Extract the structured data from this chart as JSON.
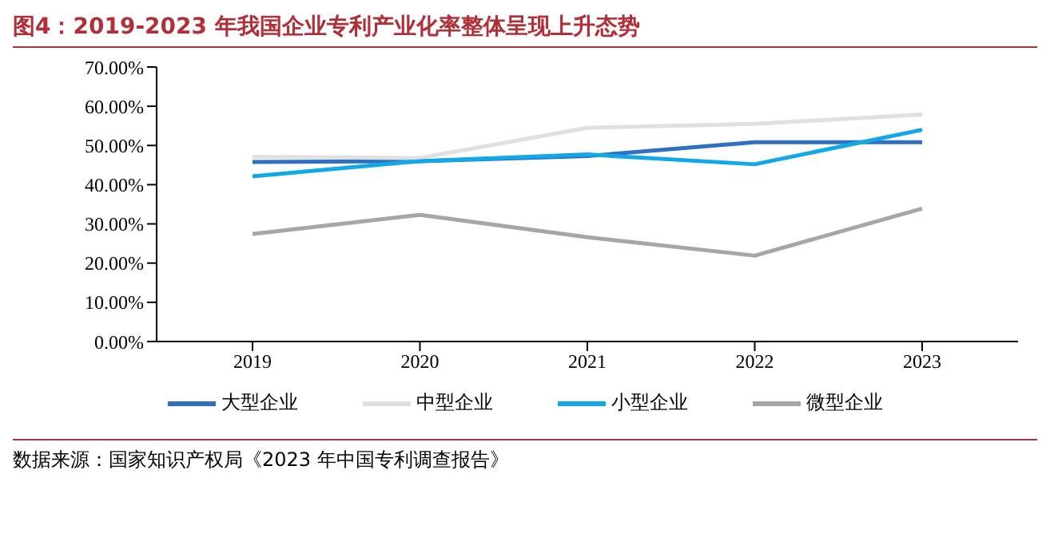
{
  "chart_data": {
    "type": "line",
    "title": "图4：2019-2023 年我国企业专利产业化率整体呈现上升态势",
    "categories": [
      "2019",
      "2020",
      "2021",
      "2022",
      "2023"
    ],
    "series": [
      {
        "name": "大型企业",
        "color": "#3070c0",
        "values": [
          45.8,
          46.0,
          47.3,
          50.8,
          50.8
        ]
      },
      {
        "name": "中型企业",
        "color": "#e0e0e0",
        "values": [
          47.1,
          46.8,
          54.5,
          55.5,
          57.9
        ]
      },
      {
        "name": "小型企业",
        "color": "#10a8e8",
        "values": [
          42.1,
          46.0,
          47.7,
          45.2,
          54.0
        ]
      },
      {
        "name": "微型企业",
        "color": "#a6a6a6",
        "values": [
          27.4,
          32.3,
          26.6,
          21.9,
          33.9
        ]
      }
    ],
    "ylim": [
      0,
      70
    ],
    "yticks": [
      {
        "value": 0,
        "label": "0.00%"
      },
      {
        "value": 10,
        "label": "10.00%"
      },
      {
        "value": 20,
        "label": "20.00%"
      },
      {
        "value": 30,
        "label": "30.00%"
      },
      {
        "value": 40,
        "label": "40.00%"
      },
      {
        "value": 50,
        "label": "50.00%"
      },
      {
        "value": 60,
        "label": "60.00%"
      },
      {
        "value": 70,
        "label": "70.00%"
      }
    ],
    "grid": false,
    "legend": "bottom",
    "marker": "none",
    "line_style": "solid",
    "annotations": [
      "数据来源：国家知识产权局《2023 年中国专利调查报告》"
    ]
  }
}
